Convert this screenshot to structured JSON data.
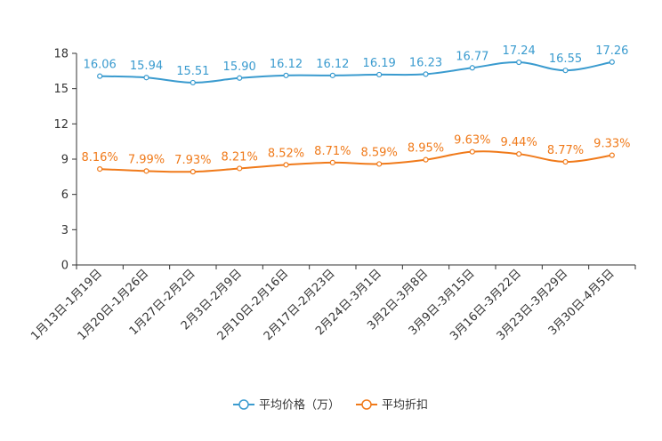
{
  "chart_data": {
    "type": "line",
    "categories": [
      "1月13日-1月19日",
      "1月20日-1月26日",
      "1月27日-2月2日",
      "2月3日-2月9日",
      "2月10日-2月16日",
      "2月17日-2月23日",
      "2月24日-3月1日",
      "3月2日-3月8日",
      "3月9日-3月15日",
      "3月16日-3月22日",
      "3月23日-3月29日",
      "3月30日-4月5日"
    ],
    "yticks": [
      "0",
      "3",
      "6",
      "9",
      "12",
      "15",
      "18"
    ],
    "ylim": [
      0,
      18
    ],
    "series": [
      {
        "name": "平均价格（万）",
        "color": "#3a9bcf",
        "values": [
          16.06,
          15.94,
          15.51,
          15.9,
          16.12,
          16.12,
          16.19,
          16.23,
          16.77,
          17.24,
          16.55,
          17.26
        ],
        "labels": [
          "16.06",
          "15.94",
          "15.51",
          "15.90",
          "16.12",
          "16.12",
          "16.19",
          "16.23",
          "16.77",
          "17.24",
          "16.55",
          "17.26"
        ]
      },
      {
        "name": "平均折扣",
        "color": "#f07a1a",
        "values": [
          8.16,
          7.99,
          7.93,
          8.21,
          8.52,
          8.71,
          8.59,
          8.95,
          9.63,
          9.44,
          8.77,
          9.33
        ],
        "labels": [
          "8.16%",
          "7.99%",
          "7.93%",
          "8.21%",
          "8.52%",
          "8.71%",
          "8.59%",
          "8.95%",
          "9.63%",
          "9.44%",
          "8.77%",
          "9.33%"
        ]
      }
    ],
    "legend": "bottom"
  }
}
